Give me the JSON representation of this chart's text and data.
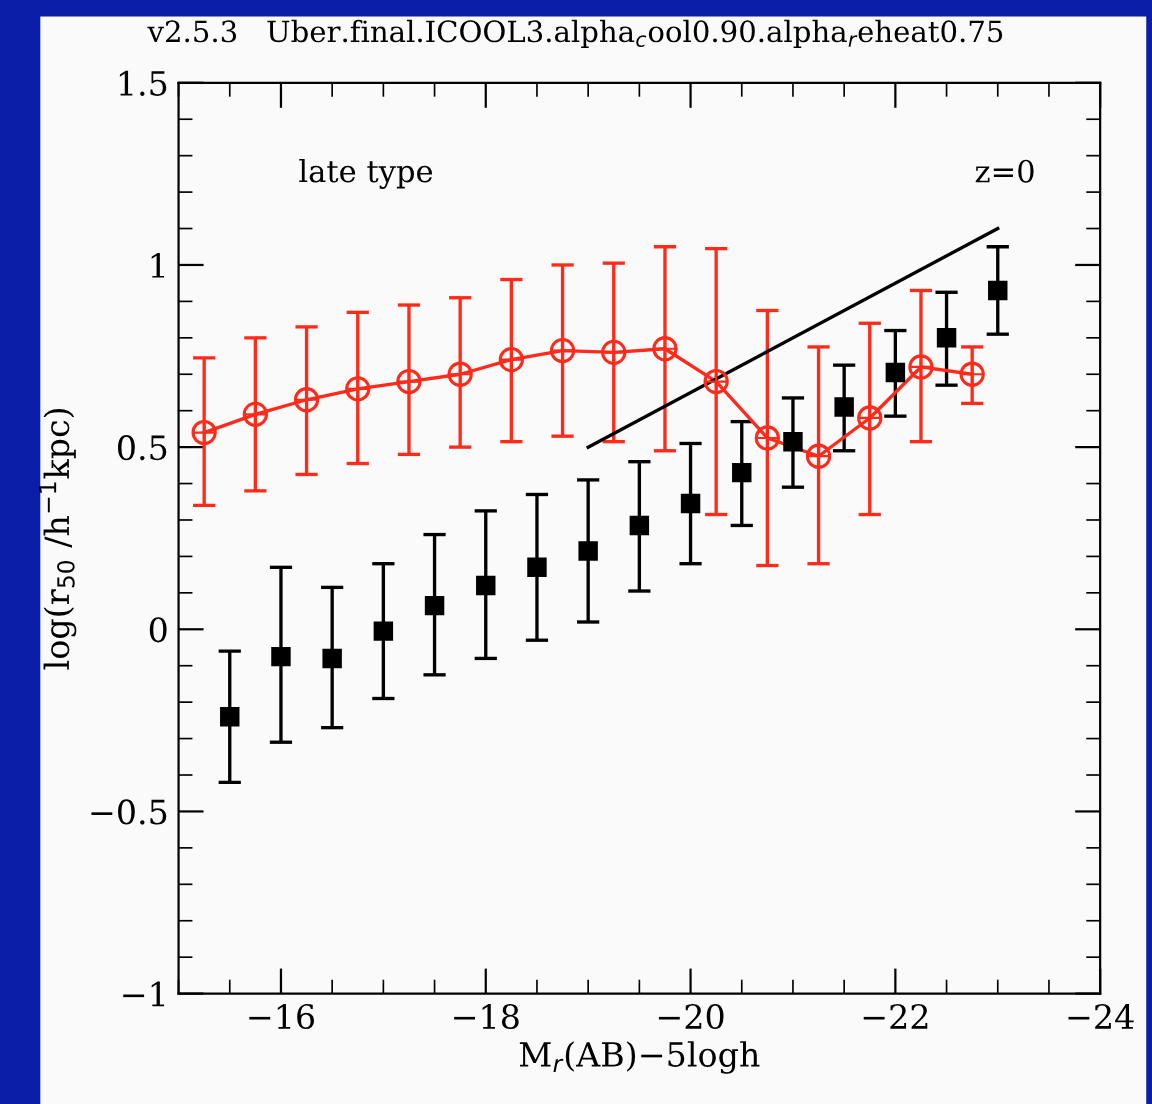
{
  "chart_data": {
    "type": "line",
    "title": "v2.5.3   Uber.final.ICOOL3.alpha$_{c}$ool0.90.alpha$_{r}$eheat0.75",
    "xlabel": "M$_{r}$(AB)−5logh",
    "ylabel": "log(r$_{50}$ /h$^{−1}$kpc)",
    "annotations": [
      "late type",
      "z=0"
    ],
    "xlim": [
      -15,
      -24
    ],
    "xticks": [
      -16,
      -18,
      -20,
      -22,
      -24
    ],
    "ylim": [
      -1,
      1.5
    ],
    "yticks": [
      -1,
      -0.5,
      0,
      0.5,
      1,
      1.5
    ],
    "grid": false,
    "series": [
      {
        "color": "#ff2a1a",
        "marker": "circle",
        "x": [
          -15.25,
          -15.75,
          -16.25,
          -16.75,
          -17.25,
          -17.75,
          -18.25,
          -18.75,
          -19.25,
          -19.75,
          -20.25,
          -20.75,
          -21.25,
          -21.75,
          -22.25,
          -22.75
        ],
        "values": [
          0.54,
          0.59,
          0.63,
          0.66,
          0.68,
          0.7,
          0.74,
          0.765,
          0.76,
          0.77,
          0.68,
          0.525,
          0.475,
          0.58,
          0.72,
          0.7
        ],
        "errors": [
          [
            0.34,
            0.745
          ],
          [
            0.38,
            0.8
          ],
          [
            0.425,
            0.83
          ],
          [
            0.455,
            0.87
          ],
          [
            0.48,
            0.89
          ],
          [
            0.5,
            0.91
          ],
          [
            0.515,
            0.96
          ],
          [
            0.53,
            1.0
          ],
          [
            0.515,
            1.005
          ],
          [
            0.49,
            1.05
          ],
          [
            0.315,
            1.045
          ],
          [
            0.175,
            0.875
          ],
          [
            0.18,
            0.775
          ],
          [
            0.315,
            0.84
          ],
          [
            0.515,
            0.93
          ],
          [
            0.62,
            0.775
          ]
        ]
      },
      {
        "type": "scatter",
        "color": "#000000",
        "marker": "square",
        "x": [
          -15.5,
          -16,
          -16.5,
          -17,
          -17.5,
          -18,
          -18.5,
          -19,
          -19.5,
          -20,
          -20.5,
          -21,
          -21.5,
          -22,
          -22.5,
          -23
        ],
        "values": [
          -0.24,
          -0.075,
          -0.08,
          -0.005,
          0.065,
          0.12,
          0.17,
          0.215,
          0.285,
          0.345,
          0.43,
          0.515,
          0.61,
          0.705,
          0.8,
          0.93
        ],
        "errors": [
          [
            -0.42,
            -0.06
          ],
          [
            -0.31,
            0.17
          ],
          [
            -0.27,
            0.115
          ],
          [
            -0.19,
            0.18
          ],
          [
            -0.125,
            0.26
          ],
          [
            -0.08,
            0.325
          ],
          [
            -0.03,
            0.37
          ],
          [
            0.02,
            0.41
          ],
          [
            0.105,
            0.46
          ],
          [
            0.18,
            0.51
          ],
          [
            0.285,
            0.57
          ],
          [
            0.39,
            0.635
          ],
          [
            0.49,
            0.725
          ],
          [
            0.585,
            0.82
          ],
          [
            0.67,
            0.925
          ],
          [
            0.81,
            1.05
          ]
        ]
      },
      {
        "color": "#000000",
        "marker": "none",
        "x": [
          -19,
          -23
        ],
        "values": [
          0.5,
          1.1
        ]
      }
    ]
  }
}
